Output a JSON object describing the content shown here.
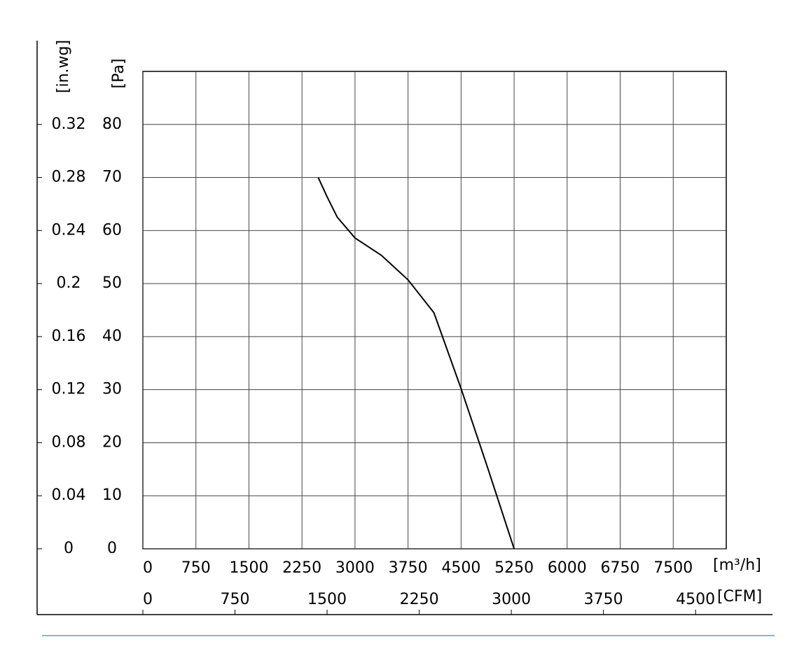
{
  "chart_data": {
    "type": "line",
    "x_label": "[m³/h]",
    "x2_label": "[CFM]",
    "y_label": "[Pa]",
    "y2_label": "[in.wg]",
    "x": [
      2480,
      2600,
      2750,
      3000,
      3375,
      3750,
      4116,
      4500,
      4875,
      5250
    ],
    "series": [
      {
        "color": "#000000",
        "values": [
          70,
          66.5,
          62.5,
          58.6,
          55.3,
          50.7,
          44.5,
          30.2,
          15.3,
          0
        ]
      }
    ],
    "xlim": [
      0,
      8250
    ],
    "xticks": [
      0,
      750,
      1500,
      2250,
      3000,
      3750,
      4500,
      5250,
      6000,
      6750,
      7500
    ],
    "x2lim": [
      0,
      4750
    ],
    "x2ticks": [
      0,
      750,
      1500,
      2250,
      3000,
      3750,
      4500
    ],
    "ylim": [
      0,
      90
    ],
    "yticks": [
      0,
      10,
      20,
      30,
      40,
      50,
      60,
      70,
      80
    ],
    "y2lim": [
      0,
      0.36
    ],
    "y2ticks": [
      0,
      0.04,
      0.08,
      0.12,
      0.16,
      0.2,
      0.24,
      0.28,
      0.32
    ],
    "grid": true
  }
}
